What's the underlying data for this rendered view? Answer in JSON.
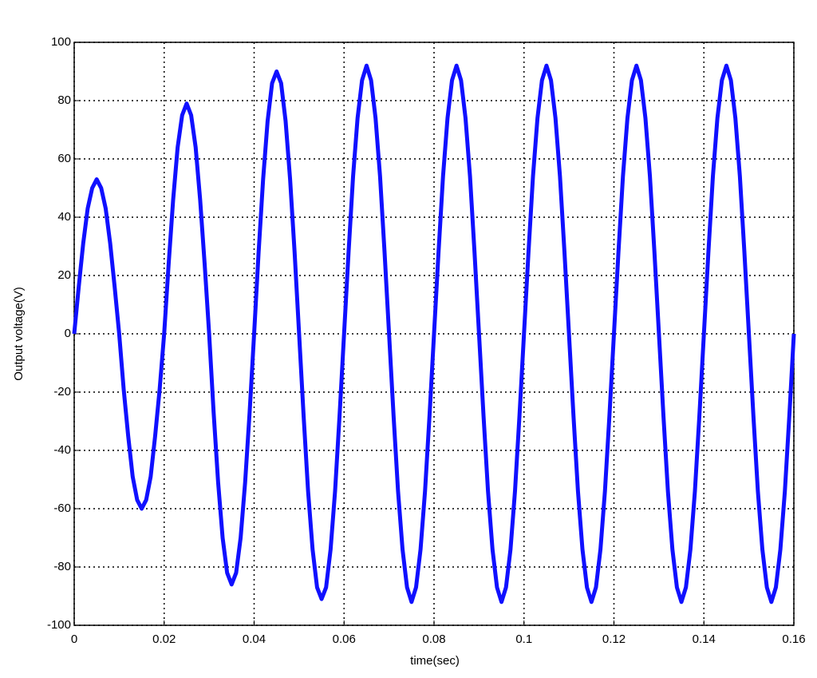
{
  "chart_data": {
    "type": "line",
    "xlabel": "time(sec)",
    "ylabel": "Output voltage(V)",
    "x": [
      0,
      0.001,
      0.002,
      0.003,
      0.004,
      0.005,
      0.006,
      0.007,
      0.008,
      0.009,
      0.01,
      0.011,
      0.012,
      0.013,
      0.014,
      0.015,
      0.016,
      0.017,
      0.018,
      0.019,
      0.02,
      0.021,
      0.022,
      0.023,
      0.024,
      0.025,
      0.026,
      0.027,
      0.028,
      0.029,
      0.03,
      0.031,
      0.032,
      0.033,
      0.034,
      0.035,
      0.036,
      0.037,
      0.038,
      0.039,
      0.04,
      0.041,
      0.042,
      0.043,
      0.044,
      0.045,
      0.046,
      0.047,
      0.048,
      0.049,
      0.05,
      0.051,
      0.052,
      0.053,
      0.054,
      0.055,
      0.056,
      0.057,
      0.058,
      0.059,
      0.06,
      0.061,
      0.062,
      0.063,
      0.064,
      0.065,
      0.066,
      0.067,
      0.068,
      0.069,
      0.07,
      0.071,
      0.072,
      0.073,
      0.074,
      0.075,
      0.076,
      0.077,
      0.078,
      0.079,
      0.08,
      0.081,
      0.082,
      0.083,
      0.084,
      0.085,
      0.086,
      0.087,
      0.088,
      0.089,
      0.09,
      0.091,
      0.092,
      0.093,
      0.094,
      0.095,
      0.096,
      0.097,
      0.098,
      0.099,
      0.1,
      0.101,
      0.102,
      0.103,
      0.104,
      0.105,
      0.106,
      0.107,
      0.108,
      0.109,
      0.11,
      0.111,
      0.112,
      0.113,
      0.114,
      0.115,
      0.116,
      0.117,
      0.118,
      0.119,
      0.12,
      0.121,
      0.122,
      0.123,
      0.124,
      0.125,
      0.126,
      0.127,
      0.128,
      0.129,
      0.13,
      0.131,
      0.132,
      0.133,
      0.134,
      0.135,
      0.136,
      0.137,
      0.138,
      0.139,
      0.14,
      0.141,
      0.142,
      0.143,
      0.144,
      0.145,
      0.146,
      0.147,
      0.148,
      0.149,
      0.15,
      0.151,
      0.152,
      0.153,
      0.154,
      0.155,
      0.156,
      0.157,
      0.158,
      0.159,
      0.16
    ],
    "series": [
      {
        "color": "#1010ff",
        "values": [
          0,
          16,
          31,
          43,
          50,
          53,
          50,
          43,
          31,
          16,
          0,
          -19,
          -35,
          -49,
          -57,
          -60,
          -57,
          -49,
          -35,
          -19,
          0,
          24,
          46,
          64,
          75,
          79,
          75,
          64,
          46,
          24,
          0,
          -27,
          -51,
          -70,
          -82,
          -86,
          -82,
          -70,
          -51,
          -27,
          0,
          28,
          53,
          73,
          86,
          90,
          86,
          73,
          53,
          28,
          0,
          -28,
          -54,
          -74,
          -87,
          -91,
          -87,
          -74,
          -54,
          -28,
          0,
          28,
          54,
          74,
          87,
          92,
          87,
          74,
          54,
          28,
          0,
          -28,
          -54,
          -74,
          -87,
          -92,
          -87,
          -74,
          -54,
          -28,
          0,
          28,
          54,
          74,
          87,
          92,
          87,
          74,
          54,
          28,
          0,
          -28,
          -54,
          -74,
          -87,
          -92,
          -87,
          -74,
          -54,
          -28,
          0,
          28,
          54,
          74,
          87,
          92,
          87,
          74,
          54,
          28,
          0,
          -28,
          -54,
          -74,
          -87,
          -92,
          -87,
          -74,
          -54,
          -28,
          0,
          28,
          54,
          74,
          87,
          92,
          87,
          74,
          54,
          28,
          0,
          -28,
          -54,
          -74,
          -87,
          -92,
          -87,
          -74,
          -54,
          -28,
          0,
          28,
          54,
          74,
          87,
          92,
          87,
          74,
          54,
          28,
          0,
          -28,
          -54,
          -74,
          -87,
          -92,
          -87,
          -74,
          -54,
          -28,
          0
        ]
      }
    ],
    "xlim": [
      0,
      0.16
    ],
    "xticks": [
      0,
      0.02,
      0.04,
      0.06,
      0.08,
      0.1,
      0.12,
      0.14,
      0.16
    ],
    "ylim": [
      -100,
      100
    ],
    "yticks": [
      -100,
      -80,
      -60,
      -40,
      -20,
      0,
      20,
      40,
      60,
      80,
      100
    ],
    "grid": true
  }
}
